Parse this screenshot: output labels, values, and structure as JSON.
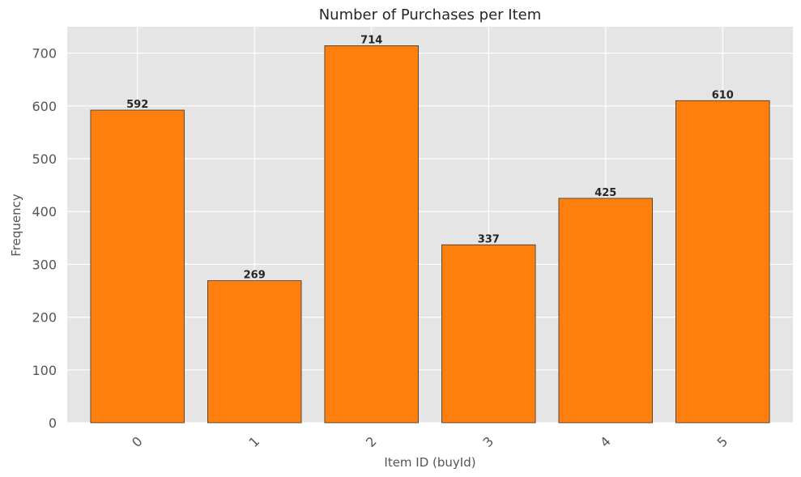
{
  "chart_data": {
    "type": "bar",
    "title": "Number of Purchases per Item",
    "xlabel": "Item ID (buyId)",
    "ylabel": "Frequency",
    "categories": [
      "0",
      "1",
      "2",
      "3",
      "4",
      "5"
    ],
    "values": [
      592,
      269,
      714,
      337,
      425,
      610
    ],
    "data_labels": [
      "592",
      "269",
      "714",
      "337",
      "425",
      "610"
    ],
    "ylim": [
      0,
      750
    ],
    "yticks": [
      0,
      100,
      200,
      300,
      400,
      500,
      600,
      700
    ],
    "ytick_labels": [
      "0",
      "100",
      "200",
      "300",
      "400",
      "500",
      "600",
      "700"
    ],
    "grid": true,
    "bar_color": "#ff7f0e",
    "bar_edge_color": "#333333",
    "plot_background": "#e5e5e5",
    "grid_color": "#ffffff",
    "xtick_rotation_deg": 45
  }
}
